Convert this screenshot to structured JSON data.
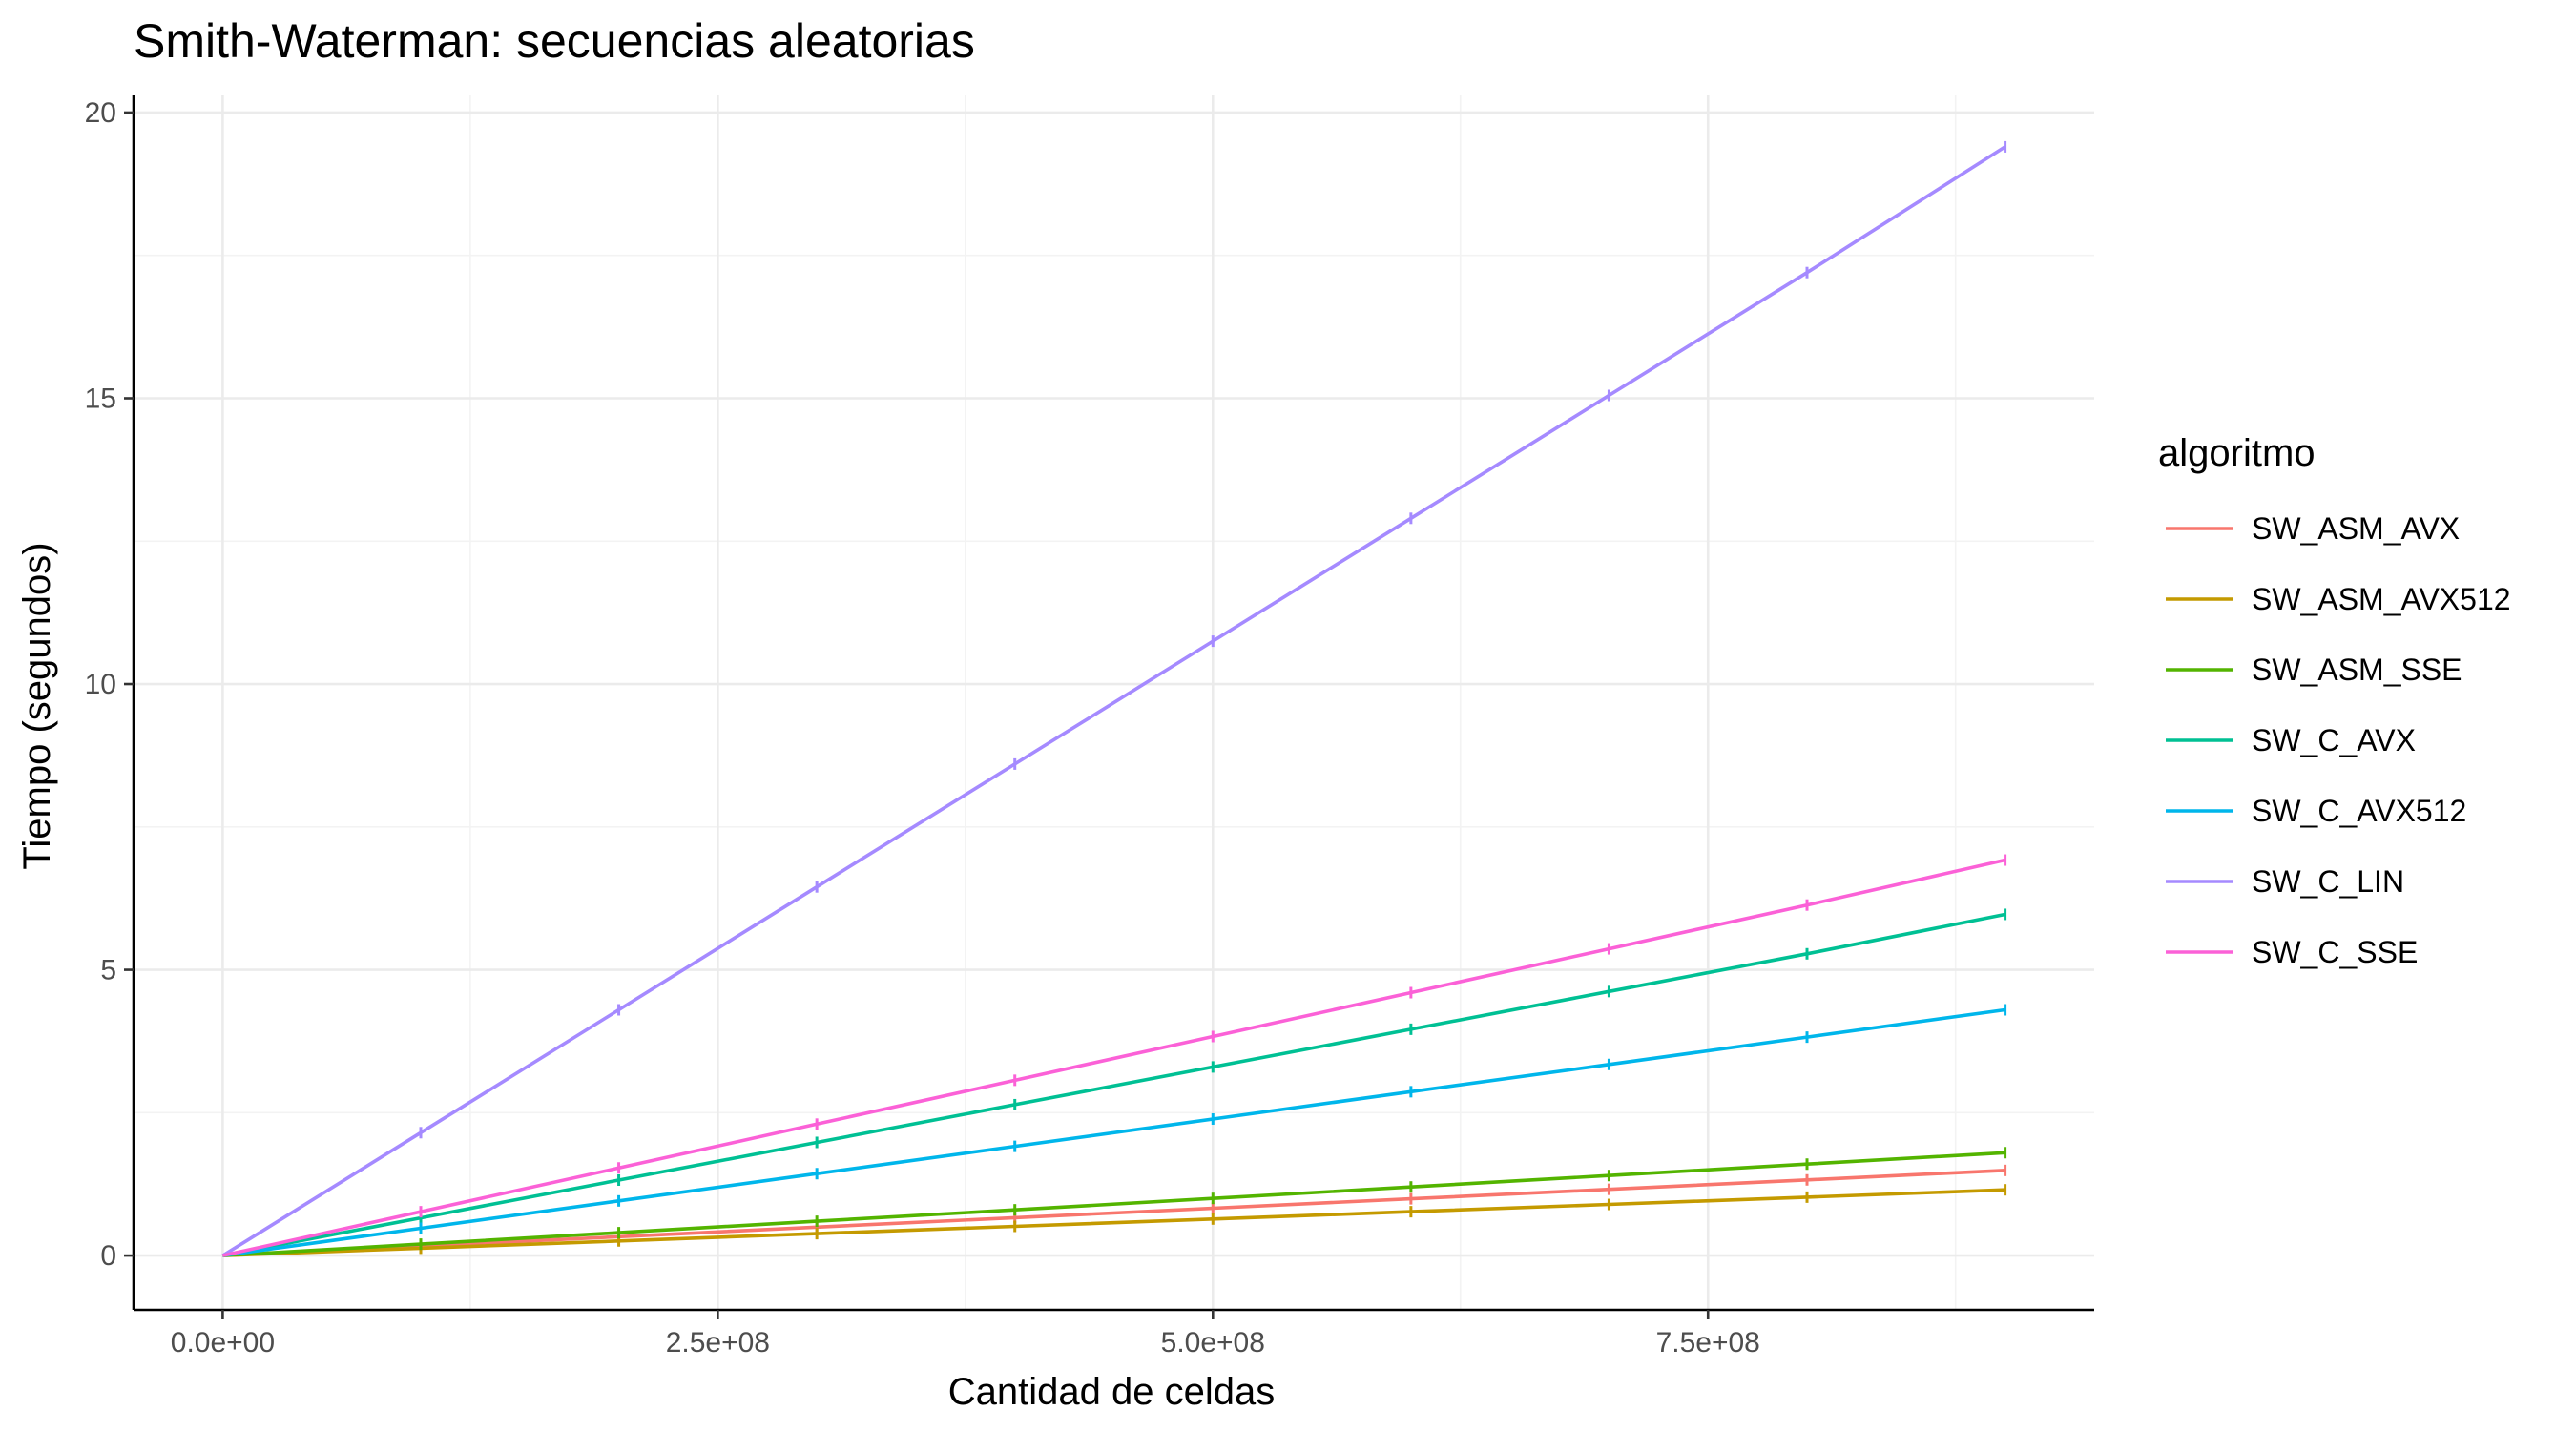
{
  "chart_data": {
    "type": "line",
    "title": "Smith-Waterman: secuencias aleatorias",
    "xlabel": "Cantidad de celdas",
    "ylabel": "Tiempo (segundos)",
    "xlim": [
      -45000000,
      945000000
    ],
    "ylim": [
      -0.95,
      20.3
    ],
    "x_ticks": [
      0,
      250000000,
      500000000,
      750000000
    ],
    "x_tick_labels": [
      "0.0e+00",
      "2.5e+08",
      "5.0e+08",
      "7.5e+08"
    ],
    "y_ticks": [
      0,
      5,
      10,
      15,
      20
    ],
    "y_tick_labels": [
      "0",
      "5",
      "10",
      "15",
      "20"
    ],
    "legend": {
      "title": "algoritmo",
      "position": "right"
    },
    "grid": true,
    "series": [
      {
        "name": "SW_ASM_AVX",
        "color": "#F8766D",
        "x": [
          0,
          100000000,
          200000000,
          300000000,
          400000000,
          500000000,
          600000000,
          700000000,
          800000000,
          900000000
        ],
        "y": [
          0,
          0.166,
          0.331,
          0.497,
          0.662,
          0.828,
          0.993,
          1.159,
          1.324,
          1.49
        ]
      },
      {
        "name": "SW_ASM_AVX512",
        "color": "#C49A00",
        "x": [
          0,
          100000000,
          200000000,
          300000000,
          400000000,
          500000000,
          600000000,
          700000000,
          800000000,
          900000000
        ],
        "y": [
          0,
          0.128,
          0.256,
          0.383,
          0.511,
          0.639,
          0.767,
          0.894,
          1.022,
          1.15
        ]
      },
      {
        "name": "SW_ASM_SSE",
        "color": "#53B400",
        "x": [
          0,
          100000000,
          200000000,
          300000000,
          400000000,
          500000000,
          600000000,
          700000000,
          800000000,
          900000000
        ],
        "y": [
          0,
          0.2,
          0.4,
          0.6,
          0.8,
          1.0,
          1.2,
          1.4,
          1.6,
          1.8
        ]
      },
      {
        "name": "SW_C_AVX",
        "color": "#00C094",
        "x": [
          0,
          100000000,
          200000000,
          300000000,
          400000000,
          500000000,
          600000000,
          700000000,
          800000000,
          900000000
        ],
        "y": [
          0,
          0.66,
          1.32,
          1.98,
          2.64,
          3.3,
          3.96,
          4.62,
          5.28,
          5.97
        ]
      },
      {
        "name": "SW_C_AVX512",
        "color": "#00B6EB",
        "x": [
          0,
          100000000,
          200000000,
          300000000,
          400000000,
          500000000,
          600000000,
          700000000,
          800000000,
          900000000
        ],
        "y": [
          0,
          0.478,
          0.956,
          1.433,
          1.911,
          2.389,
          2.867,
          3.344,
          3.822,
          4.3
        ]
      },
      {
        "name": "SW_C_LIN",
        "color": "#A58AFF",
        "x": [
          0,
          100000000,
          200000000,
          300000000,
          400000000,
          500000000,
          600000000,
          700000000,
          800000000,
          900000000
        ],
        "y": [
          0,
          2.15,
          4.3,
          6.45,
          8.6,
          10.75,
          12.9,
          15.05,
          17.2,
          19.4
        ]
      },
      {
        "name": "SW_C_SSE",
        "color": "#FB61D7",
        "x": [
          0,
          100000000,
          200000000,
          300000000,
          400000000,
          500000000,
          600000000,
          700000000,
          800000000,
          900000000
        ],
        "y": [
          0,
          0.767,
          1.533,
          2.3,
          3.067,
          3.833,
          4.6,
          5.367,
          6.133,
          6.92
        ]
      }
    ]
  }
}
